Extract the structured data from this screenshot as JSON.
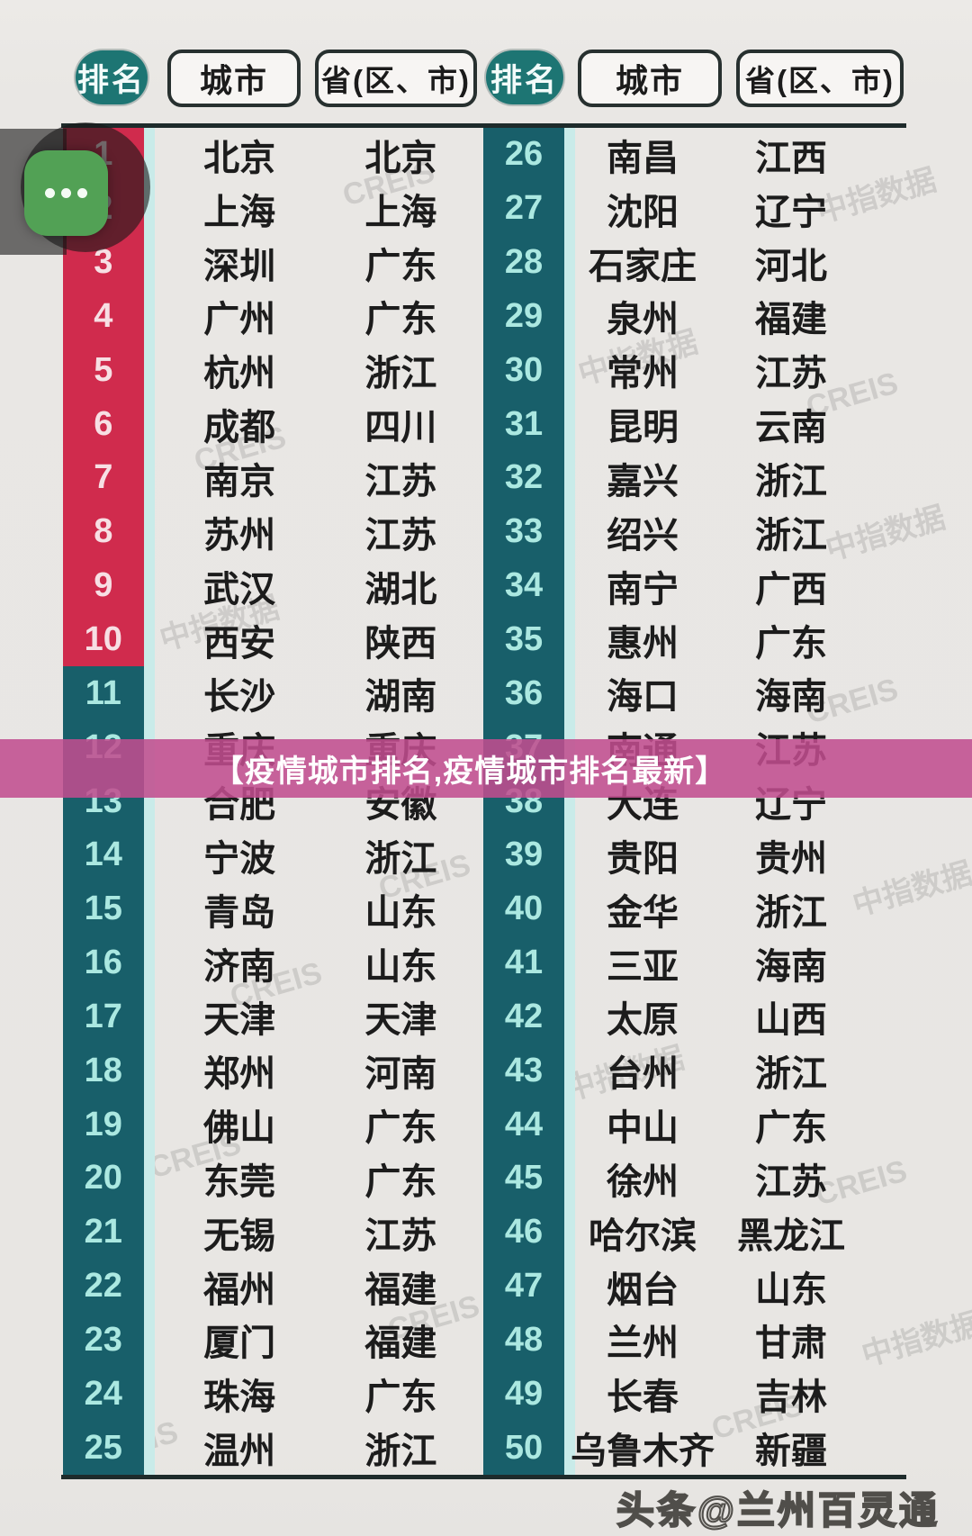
{
  "header": {
    "rank": "排名",
    "city": "城市",
    "province": "省(区、市)"
  },
  "banner": {
    "text": "【疫情城市排名,疫情城市排名最新】"
  },
  "overlay": {
    "more_icon": "three-dots"
  },
  "watermarks": {
    "brand": "中指数据",
    "creis": "CREIS",
    "credit": "头条@兰州百灵通"
  },
  "colors": {
    "rank_red": "#d02b4d",
    "rank_teal": "#185f6a",
    "header_teal": "#1d7573",
    "stripe_cyan": "#c9ebe9",
    "banner_pink": "#c14d8e",
    "icon_green": "#52a155",
    "rank_num_on_red": "#f7dfe4",
    "rank_num_on_teal": "#abe8e1",
    "page_bg": "#e8e6e3",
    "text_dark": "#1c1c1c"
  },
  "table": {
    "left_rows": [
      {
        "rank": 1,
        "city": "北京",
        "province": "北京"
      },
      {
        "rank": 2,
        "city": "上海",
        "province": "上海"
      },
      {
        "rank": 3,
        "city": "深圳",
        "province": "广东"
      },
      {
        "rank": 4,
        "city": "广州",
        "province": "广东"
      },
      {
        "rank": 5,
        "city": "杭州",
        "province": "浙江"
      },
      {
        "rank": 6,
        "city": "成都",
        "province": "四川"
      },
      {
        "rank": 7,
        "city": "南京",
        "province": "江苏"
      },
      {
        "rank": 8,
        "city": "苏州",
        "province": "江苏"
      },
      {
        "rank": 9,
        "city": "武汉",
        "province": "湖北"
      },
      {
        "rank": 10,
        "city": "西安",
        "province": "陕西"
      },
      {
        "rank": 11,
        "city": "长沙",
        "province": "湖南"
      },
      {
        "rank": 12,
        "city": "重庆",
        "province": "重庆"
      },
      {
        "rank": 13,
        "city": "合肥",
        "province": "安徽"
      },
      {
        "rank": 14,
        "city": "宁波",
        "province": "浙江"
      },
      {
        "rank": 15,
        "city": "青岛",
        "province": "山东"
      },
      {
        "rank": 16,
        "city": "济南",
        "province": "山东"
      },
      {
        "rank": 17,
        "city": "天津",
        "province": "天津"
      },
      {
        "rank": 18,
        "city": "郑州",
        "province": "河南"
      },
      {
        "rank": 19,
        "city": "佛山",
        "province": "广东"
      },
      {
        "rank": 20,
        "city": "东莞",
        "province": "广东"
      },
      {
        "rank": 21,
        "city": "无锡",
        "province": "江苏"
      },
      {
        "rank": 22,
        "city": "福州",
        "province": "福建"
      },
      {
        "rank": 23,
        "city": "厦门",
        "province": "福建"
      },
      {
        "rank": 24,
        "city": "珠海",
        "province": "广东"
      },
      {
        "rank": 25,
        "city": "温州",
        "province": "浙江"
      }
    ],
    "right_rows": [
      {
        "rank": 26,
        "city": "南昌",
        "province": "江西"
      },
      {
        "rank": 27,
        "city": "沈阳",
        "province": "辽宁"
      },
      {
        "rank": 28,
        "city": "石家庄",
        "province": "河北"
      },
      {
        "rank": 29,
        "city": "泉州",
        "province": "福建"
      },
      {
        "rank": 30,
        "city": "常州",
        "province": "江苏"
      },
      {
        "rank": 31,
        "city": "昆明",
        "province": "云南"
      },
      {
        "rank": 32,
        "city": "嘉兴",
        "province": "浙江"
      },
      {
        "rank": 33,
        "city": "绍兴",
        "province": "浙江"
      },
      {
        "rank": 34,
        "city": "南宁",
        "province": "广西"
      },
      {
        "rank": 35,
        "city": "惠州",
        "province": "广东"
      },
      {
        "rank": 36,
        "city": "海口",
        "province": "海南"
      },
      {
        "rank": 37,
        "city": "南通",
        "province": "江苏"
      },
      {
        "rank": 38,
        "city": "大连",
        "province": "辽宁"
      },
      {
        "rank": 39,
        "city": "贵阳",
        "province": "贵州"
      },
      {
        "rank": 40,
        "city": "金华",
        "province": "浙江"
      },
      {
        "rank": 41,
        "city": "三亚",
        "province": "海南"
      },
      {
        "rank": 42,
        "city": "太原",
        "province": "山西"
      },
      {
        "rank": 43,
        "city": "台州",
        "province": "浙江"
      },
      {
        "rank": 44,
        "city": "中山",
        "province": "广东"
      },
      {
        "rank": 45,
        "city": "徐州",
        "province": "江苏"
      },
      {
        "rank": 46,
        "city": "哈尔滨",
        "province": "黑龙江"
      },
      {
        "rank": 47,
        "city": "烟台",
        "province": "山东"
      },
      {
        "rank": 48,
        "city": "兰州",
        "province": "甘肃"
      },
      {
        "rank": 49,
        "city": "长春",
        "province": "吉林"
      },
      {
        "rank": 50,
        "city": "乌鲁木齐",
        "province": "新疆"
      }
    ]
  }
}
